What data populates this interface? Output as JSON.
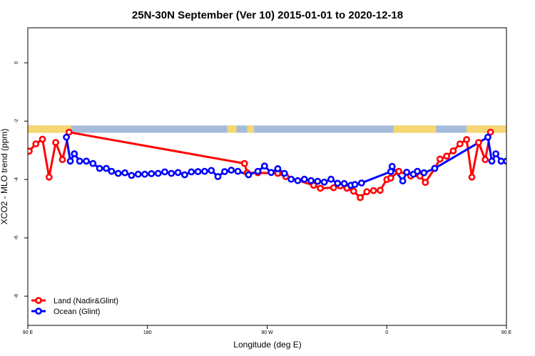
{
  "chart_data": {
    "type": "line",
    "title": "25N-30N September (Ver 10)   2015-01-01 to 2020-12-18",
    "xlabel": "Longitude (deg E)",
    "ylabel": "XCO2 - MLO trend (ppm)",
    "xlim": [
      90,
      450
    ],
    "ylim": [
      -9,
      1.2
    ],
    "x_ticks": [
      {
        "value": 90,
        "label": "90 E"
      },
      {
        "value": 180,
        "label": "180"
      },
      {
        "value": 270,
        "label": "90 W"
      },
      {
        "value": 360,
        "label": "0"
      },
      {
        "value": 450,
        "label": "90 E"
      },
      {
        "value": 540,
        "label": "180"
      }
    ],
    "y_ticks": [
      {
        "value": 0,
        "label": "0"
      },
      {
        "value": -2,
        "label": "-2"
      },
      {
        "value": -4,
        "label": "-4"
      },
      {
        "value": -6,
        "label": "-6"
      },
      {
        "value": -8,
        "label": "-8"
      }
    ],
    "legend": {
      "position": "bottom-left"
    },
    "land_bar": {
      "y_range": [
        -2.4,
        -2.15
      ],
      "ocean_color": "#a5bcdc",
      "land_color": "#f5d670",
      "land_intervals": [
        [
          90,
          122.5
        ],
        [
          240,
          247
        ],
        [
          255,
          260
        ],
        [
          365,
          397
        ],
        [
          420,
          515
        ]
      ]
    },
    "series": [
      {
        "name": "Land (Nadir&Glint)",
        "color": "#ff0000",
        "points": [
          [
            91,
            -3.03
          ],
          [
            96,
            -2.78
          ],
          [
            101,
            -2.62
          ],
          [
            106,
            -3.92
          ],
          [
            111,
            -2.73
          ],
          [
            116,
            -3.32
          ],
          [
            121,
            -2.38
          ],
          [
            253,
            -3.45
          ],
          [
            255,
            -3.77
          ],
          [
            263,
            -3.77
          ],
          [
            278,
            -3.79
          ],
          [
            284,
            -3.9
          ],
          [
            305,
            -4.2
          ],
          [
            310,
            -4.3
          ],
          [
            320,
            -4.28
          ],
          [
            325,
            -4.22
          ],
          [
            330,
            -4.3
          ],
          [
            335,
            -4.4
          ],
          [
            340,
            -4.62
          ],
          [
            345,
            -4.42
          ],
          [
            350,
            -4.38
          ],
          [
            355,
            -4.37
          ],
          [
            360,
            -4.0
          ],
          [
            363,
            -3.95
          ],
          [
            369,
            -3.72
          ],
          [
            378,
            -3.88
          ],
          [
            385,
            -3.88
          ],
          [
            389,
            -4.1
          ],
          [
            396,
            -3.62
          ],
          [
            400,
            -3.3
          ],
          [
            405,
            -3.2
          ],
          [
            410,
            -3.02
          ],
          [
            415,
            -2.78
          ],
          [
            420,
            -2.63
          ],
          [
            424,
            -3.92
          ],
          [
            429,
            -2.73
          ],
          [
            434,
            -3.32
          ],
          [
            438,
            -2.38
          ]
        ]
      },
      {
        "name": "Ocean (Glint)",
        "color": "#0000ff",
        "points": [
          [
            119,
            -2.55
          ],
          [
            122,
            -3.37
          ],
          [
            125,
            -3.12
          ],
          [
            129,
            -3.37
          ],
          [
            134,
            -3.37
          ],
          [
            139,
            -3.45
          ],
          [
            144,
            -3.62
          ],
          [
            149,
            -3.62
          ],
          [
            153,
            -3.72
          ],
          [
            158,
            -3.79
          ],
          [
            163,
            -3.77
          ],
          [
            168,
            -3.86
          ],
          [
            173,
            -3.82
          ],
          [
            178,
            -3.82
          ],
          [
            183,
            -3.8
          ],
          [
            188,
            -3.79
          ],
          [
            193,
            -3.74
          ],
          [
            198,
            -3.79
          ],
          [
            203,
            -3.76
          ],
          [
            208,
            -3.84
          ],
          [
            213,
            -3.74
          ],
          [
            218,
            -3.73
          ],
          [
            223,
            -3.72
          ],
          [
            228,
            -3.69
          ],
          [
            233,
            -3.9
          ],
          [
            238,
            -3.73
          ],
          [
            243,
            -3.68
          ],
          [
            248,
            -3.72
          ],
          [
            256,
            -3.84
          ],
          [
            263,
            -3.72
          ],
          [
            268,
            -3.54
          ],
          [
            273,
            -3.76
          ],
          [
            278,
            -3.63
          ],
          [
            283,
            -3.79
          ],
          [
            288,
            -3.99
          ],
          [
            293,
            -4.04
          ],
          [
            298,
            -3.99
          ],
          [
            303,
            -4.04
          ],
          [
            308,
            -4.06
          ],
          [
            313,
            -4.09
          ],
          [
            318,
            -3.99
          ],
          [
            323,
            -4.13
          ],
          [
            328,
            -4.14
          ],
          [
            333,
            -4.2
          ],
          [
            336,
            -4.17
          ],
          [
            341,
            -4.12
          ],
          [
            363,
            -3.73
          ],
          [
            364,
            -3.55
          ],
          [
            372,
            -4.05
          ],
          [
            375,
            -3.75
          ],
          [
            380,
            -3.82
          ],
          [
            383,
            -3.72
          ],
          [
            388,
            -3.77
          ],
          [
            396,
            -3.62
          ],
          [
            436,
            -2.55
          ],
          [
            439,
            -3.37
          ],
          [
            442,
            -3.12
          ],
          [
            446,
            -3.37
          ],
          [
            450,
            -3.37
          ],
          [
            455,
            -3.45
          ],
          [
            460,
            -3.62
          ],
          [
            465,
            -3.62
          ],
          [
            470,
            -3.72
          ],
          [
            475,
            -3.79
          ],
          [
            480,
            -3.77
          ],
          [
            485,
            -3.86
          ],
          [
            490,
            -3.82
          ]
        ]
      }
    ]
  }
}
